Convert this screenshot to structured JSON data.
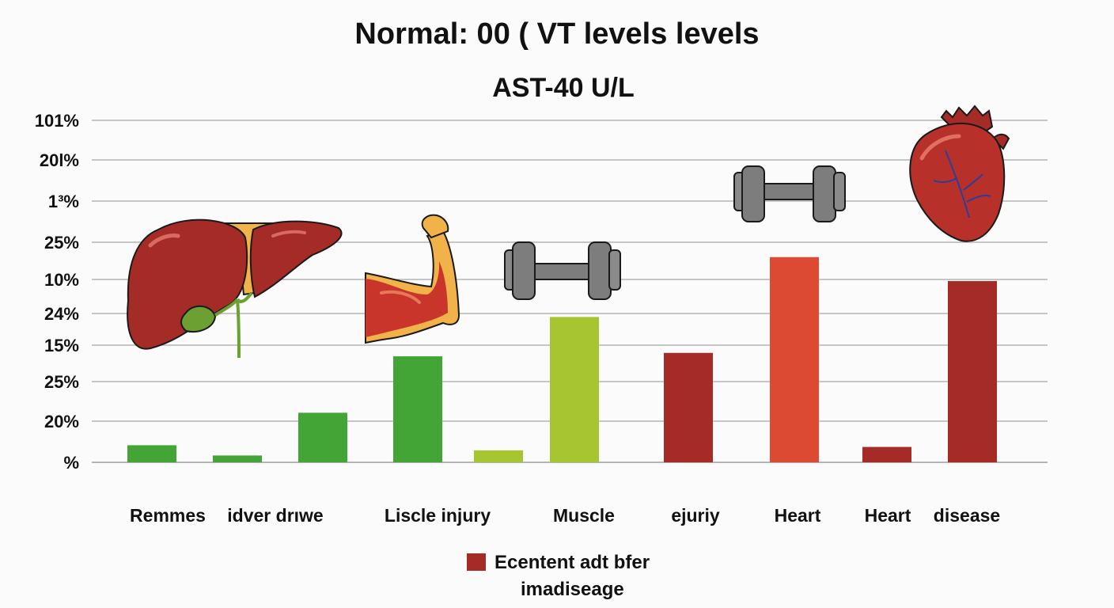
{
  "chart_data": {
    "type": "bar",
    "title": "Normal: 00 ( VT levels levels",
    "subtitle": "AST-40 U/L",
    "y_tick_labels": [
      "101%",
      "20l%",
      "1³%",
      "25%",
      "10%",
      "24%",
      "15%",
      "25%",
      "20%",
      "%"
    ],
    "category_labels": [
      "Remmes",
      "idver drıwe",
      "Liscle injury",
      "Muscle",
      "ejuriy",
      "Heart",
      "Heart",
      "disease"
    ],
    "ylim": [
      0,
      100
    ],
    "grid": true,
    "bars": [
      {
        "value": 5,
        "color": "#43a535"
      },
      {
        "value": 2,
        "color": "#43a535"
      },
      {
        "value": 14.5,
        "color": "#43a535"
      },
      {
        "value": 31,
        "color": "#43a535"
      },
      {
        "value": 3.5,
        "color": "#a7c531"
      },
      {
        "value": 42.5,
        "color": "#a7c531"
      },
      {
        "value": 32,
        "color": "#a52b27"
      },
      {
        "value": 60,
        "color": "#dd4a33"
      },
      {
        "value": 4.5,
        "color": "#a52b27"
      },
      {
        "value": 53,
        "color": "#a52b27"
      }
    ],
    "legend": {
      "line1": "Ecentent adt bfer",
      "line2": "imadiseage",
      "color": "#a52b27",
      "position": "bottom-center"
    }
  },
  "illustrations": [
    {
      "icon": "liver-icon"
    },
    {
      "icon": "flexed-arm-icon"
    },
    {
      "icon": "dumbbell-icon"
    },
    {
      "icon": "dumbbell-icon"
    },
    {
      "icon": "heart-icon"
    }
  ],
  "colors": {
    "grid": "#b5b5b5",
    "text": "#111111",
    "background": "#fbfbfb"
  }
}
